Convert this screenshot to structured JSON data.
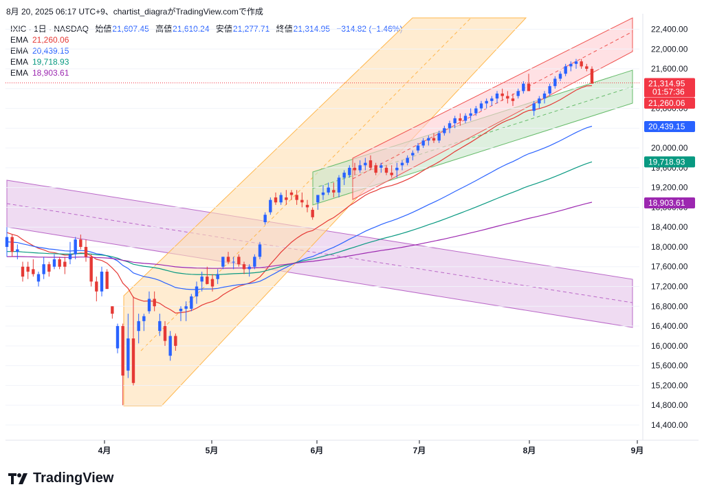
{
  "caption": "8月 20, 2025 06:17 UTC+9、chartist_diagraがTradingView.comで作成",
  "header": {
    "symbol": "IXIC · 1日 · NASDAQ",
    "open_label": "始値",
    "open": "21,607.45",
    "high_label": "高値",
    "high": "21,610.24",
    "low_label": "安値",
    "low": "21,277.71",
    "close_label": "終値",
    "close": "21,314.95",
    "change": "−314.82 (−1.46%)"
  },
  "emas": [
    {
      "label": "EMA",
      "value": "21,260.06",
      "color": "#e53935"
    },
    {
      "label": "EMA",
      "value": "20,439.15",
      "color": "#2962ff"
    },
    {
      "label": "EMA",
      "value": "19,718.93",
      "color": "#089981"
    },
    {
      "label": "EMA",
      "value": "18,903.61",
      "color": "#9c27b0"
    }
  ],
  "price_tags": [
    {
      "value": "21,314.95",
      "sub": "01:57:36",
      "color": "#f23645"
    },
    {
      "value": "21,260.06",
      "color": "#f23645"
    },
    {
      "value": "20,439.15",
      "color": "#2962ff"
    },
    {
      "value": "19,718.93",
      "color": "#089981"
    },
    {
      "value": "18,903.61",
      "color": "#9c27b0"
    }
  ],
  "brand": "TradingView",
  "chart_data": {
    "type": "candlestick",
    "x_ticks": [
      "4月",
      "5月",
      "6月",
      "7月",
      "8月",
      "9月"
    ],
    "y_ticks": [
      14400,
      14800,
      15200,
      15600,
      16000,
      16400,
      16800,
      17200,
      17600,
      18000,
      18400,
      18800,
      19200,
      19600,
      20000,
      20400,
      20800,
      21200,
      21600,
      22000,
      22400
    ],
    "ylim": [
      14400,
      22800
    ],
    "up_color": "#2962ff",
    "down_color": "#e53935",
    "candles": [
      [
        18000,
        18400,
        17800,
        18200
      ],
      [
        18200,
        18250,
        17800,
        17900
      ],
      [
        17900,
        18050,
        17750,
        17950
      ],
      [
        17600,
        17700,
        17300,
        17400
      ],
      [
        17600,
        17700,
        17350,
        17500
      ],
      [
        17550,
        17750,
        17400,
        17450
      ],
      [
        17300,
        17500,
        17200,
        17450
      ],
      [
        17450,
        17800,
        17350,
        17650
      ],
      [
        17650,
        17700,
        17400,
        17500
      ],
      [
        17600,
        17850,
        17550,
        17750
      ],
      [
        17750,
        17800,
        17550,
        17600
      ],
      [
        17700,
        17800,
        17450,
        17600
      ],
      [
        17750,
        18100,
        17650,
        17850
      ],
      [
        17850,
        18200,
        17750,
        18150
      ],
      [
        18150,
        18250,
        17950,
        18000
      ],
      [
        18000,
        18150,
        17700,
        17800
      ],
      [
        17800,
        17850,
        17200,
        17300
      ],
      [
        17300,
        17400,
        16900,
        17100
      ],
      [
        17100,
        17600,
        17000,
        17500
      ],
      [
        17500,
        17550,
        17150,
        17150
      ],
      [
        16800,
        16800,
        16550,
        16650
      ],
      [
        15950,
        16450,
        15850,
        16400
      ],
      [
        16400,
        16450,
        14800,
        15400
      ],
      [
        15500,
        16650,
        15350,
        16150
      ],
      [
        16150,
        17000,
        15200,
        15250
      ],
      [
        16300,
        16650,
        16050,
        16500
      ],
      [
        16500,
        16650,
        16300,
        16600
      ],
      [
        16700,
        17100,
        16650,
        16950
      ],
      [
        16950,
        17100,
        16700,
        16800
      ],
      [
        16300,
        16650,
        16200,
        16500
      ],
      [
        16400,
        16500,
        16000,
        16100
      ],
      [
        15800,
        16300,
        15700,
        16200
      ],
      [
        16200,
        16250,
        15900,
        16000
      ],
      [
        16700,
        16800,
        16500,
        16750
      ],
      [
        16750,
        16900,
        16500,
        16800
      ],
      [
        16750,
        17050,
        16700,
        17000
      ],
      [
        17000,
        17300,
        16850,
        17200
      ],
      [
        17300,
        17500,
        17100,
        17400
      ],
      [
        17400,
        17600,
        17250,
        17250
      ],
      [
        17350,
        17450,
        17100,
        17200
      ],
      [
        17350,
        17550,
        17250,
        17450
      ],
      [
        17600,
        17800,
        17550,
        17800
      ],
      [
        17800,
        17900,
        17650,
        17700
      ],
      [
        17700,
        17800,
        17550,
        17700
      ],
      [
        17800,
        17850,
        17600,
        17650
      ],
      [
        17650,
        17700,
        17450,
        17550
      ],
      [
        17550,
        17650,
        17400,
        17600
      ],
      [
        17600,
        17850,
        17550,
        17800
      ],
      [
        17800,
        18100,
        17750,
        18050
      ],
      [
        18500,
        18700,
        18450,
        18650
      ],
      [
        18700,
        19000,
        18650,
        18950
      ],
      [
        19000,
        19100,
        18850,
        18900
      ],
      [
        18900,
        19100,
        18850,
        19050
      ],
      [
        19000,
        19150,
        18850,
        18950
      ],
      [
        19100,
        19150,
        18950,
        19050
      ],
      [
        19050,
        19150,
        18850,
        18950
      ],
      [
        18950,
        19100,
        18800,
        18900
      ],
      [
        18850,
        18950,
        18700,
        18800
      ],
      [
        18750,
        18800,
        18550,
        18600
      ],
      [
        18900,
        19050,
        18750,
        19050
      ],
      [
        19050,
        19250,
        18950,
        19100
      ],
      [
        19100,
        19300,
        19050,
        19200
      ],
      [
        19150,
        19300,
        19000,
        19100
      ],
      [
        19100,
        19450,
        19000,
        19400
      ],
      [
        19400,
        19550,
        19250,
        19500
      ],
      [
        19450,
        19650,
        19400,
        19600
      ],
      [
        19600,
        19700,
        19450,
        19550
      ],
      [
        19550,
        19750,
        19500,
        19650
      ],
      [
        19650,
        19800,
        19550,
        19700
      ],
      [
        19750,
        19850,
        19550,
        19600
      ],
      [
        19650,
        19700,
        19450,
        19500
      ],
      [
        19600,
        19700,
        19500,
        19650
      ],
      [
        19600,
        19650,
        19450,
        19500
      ],
      [
        19500,
        19650,
        19400,
        19450
      ],
      [
        19550,
        19700,
        19400,
        19600
      ],
      [
        19650,
        19750,
        19550,
        19700
      ],
      [
        19700,
        19850,
        19650,
        19800
      ],
      [
        19850,
        19950,
        19750,
        19900
      ],
      [
        19950,
        20100,
        19900,
        20050
      ],
      [
        20050,
        20200,
        20000,
        20150
      ],
      [
        20150,
        20250,
        20050,
        20200
      ],
      [
        20200,
        20300,
        20100,
        20150
      ],
      [
        20150,
        20350,
        20100,
        20300
      ],
      [
        20300,
        20450,
        20250,
        20400
      ],
      [
        20400,
        20550,
        20300,
        20500
      ],
      [
        20500,
        20650,
        20400,
        20600
      ],
      [
        20600,
        20700,
        20450,
        20550
      ],
      [
        20550,
        20700,
        20500,
        20650
      ],
      [
        20650,
        20800,
        20550,
        20700
      ],
      [
        20700,
        20850,
        20650,
        20800
      ],
      [
        20800,
        20950,
        20750,
        20900
      ],
      [
        20900,
        21000,
        20800,
        20950
      ],
      [
        20950,
        21050,
        20850,
        21000
      ],
      [
        21000,
        21150,
        20900,
        21100
      ],
      [
        21100,
        21200,
        20950,
        21050
      ],
      [
        21050,
        21150,
        20900,
        21000
      ],
      [
        21000,
        21100,
        20850,
        20950
      ],
      [
        21050,
        21200,
        21000,
        21150
      ],
      [
        21150,
        21350,
        21100,
        21300
      ],
      [
        21300,
        21500,
        21150,
        21150
      ],
      [
        20750,
        20950,
        20650,
        20900
      ],
      [
        20900,
        21050,
        20800,
        21000
      ],
      [
        21000,
        21150,
        20900,
        21100
      ],
      [
        21100,
        21300,
        21050,
        21250
      ],
      [
        21250,
        21450,
        21200,
        21400
      ],
      [
        21400,
        21550,
        21350,
        21500
      ],
      [
        21500,
        21700,
        21450,
        21650
      ],
      [
        21650,
        21750,
        21550,
        21700
      ],
      [
        21700,
        21800,
        21600,
        21750
      ],
      [
        21750,
        21800,
        21600,
        21650
      ],
      [
        21650,
        21700,
        21550,
        21600
      ],
      [
        21600,
        21650,
        21300,
        21300
      ]
    ],
    "ema_series_last_values": [
      21260.06,
      20439.15,
      19718.93,
      18903.61
    ]
  }
}
